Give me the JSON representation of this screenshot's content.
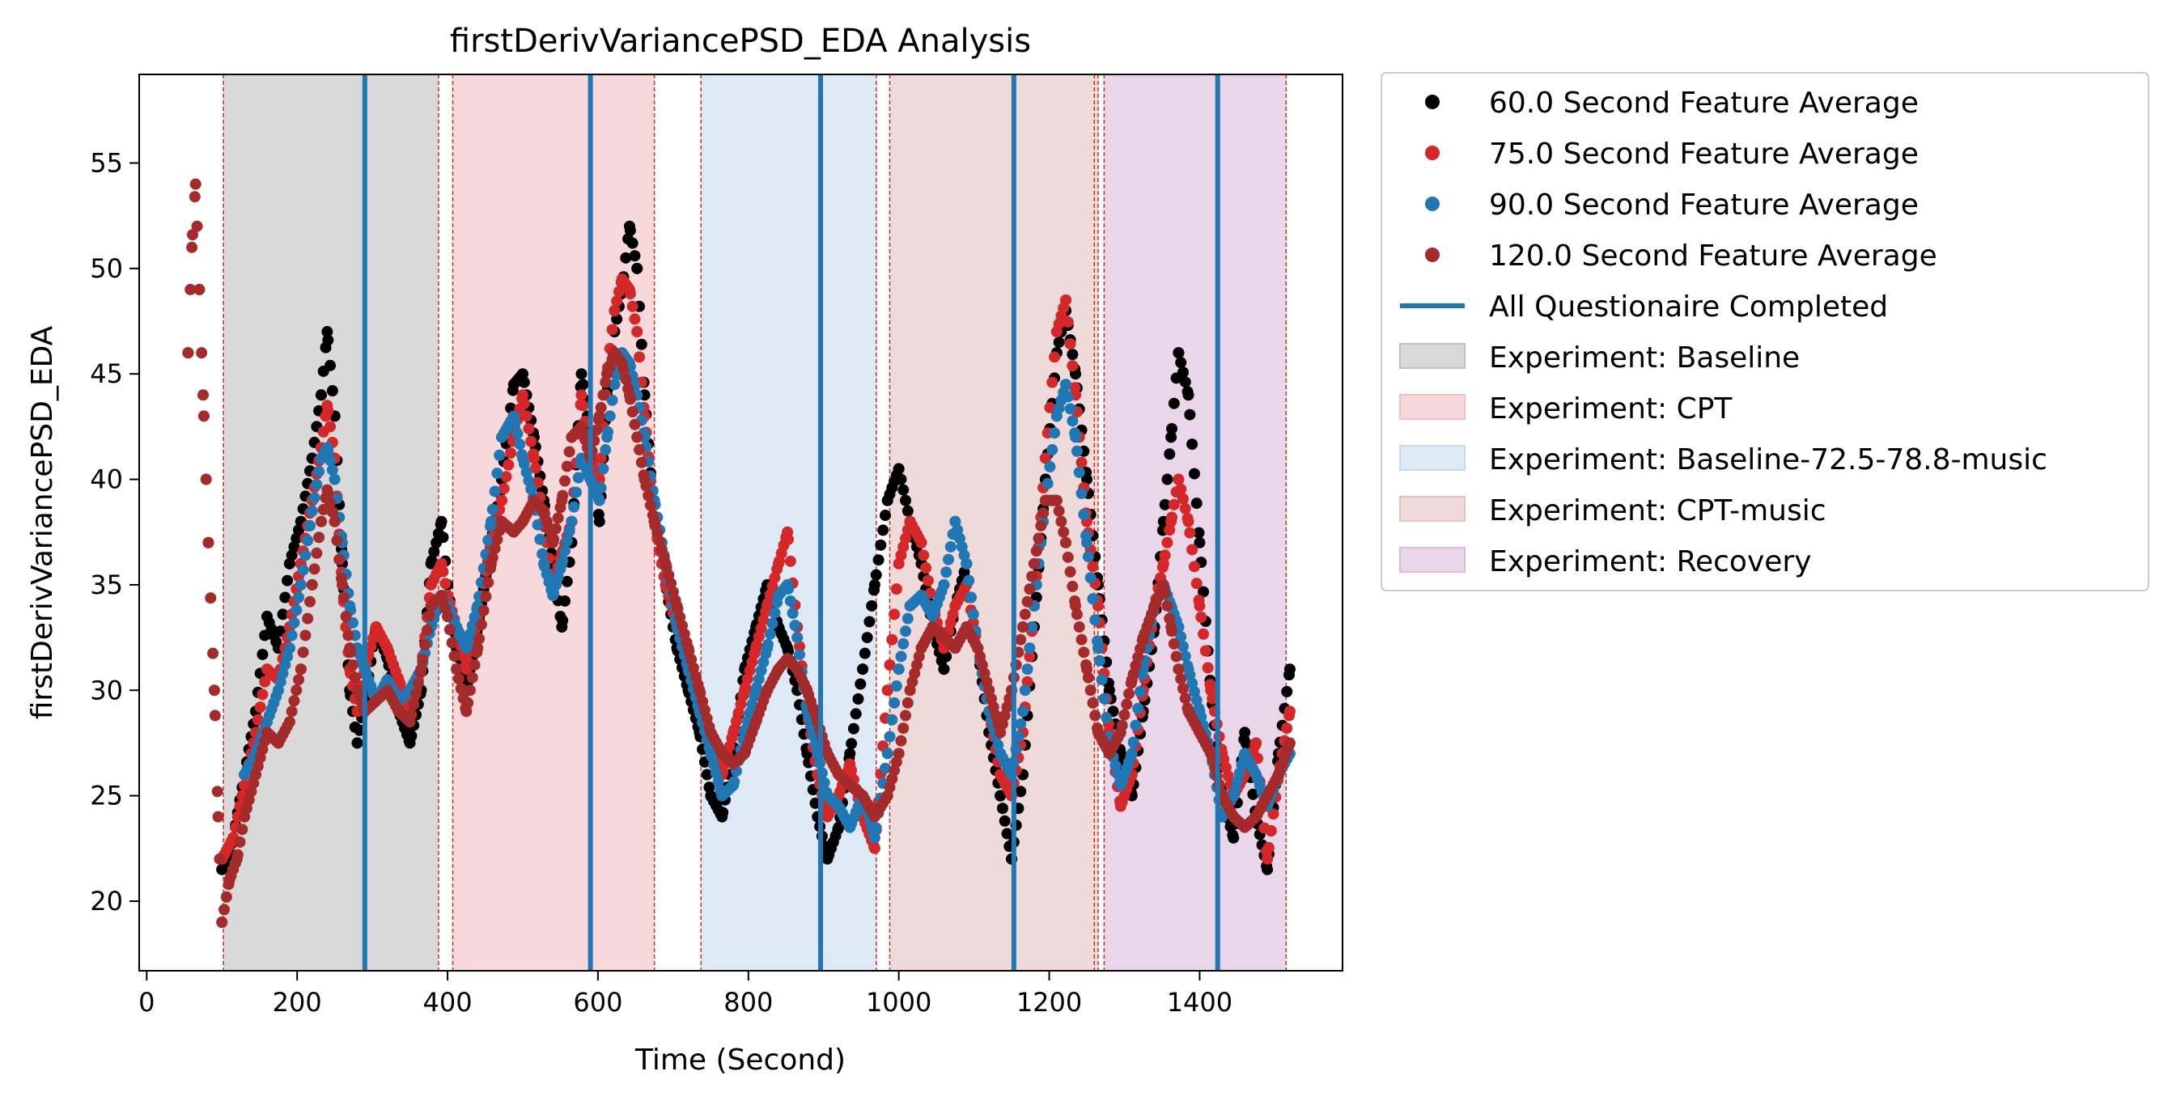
{
  "chart_data": {
    "type": "scatter",
    "title": "firstDerivVariancePSD_EDA Analysis",
    "xlabel": "Time (Second)",
    "ylabel": "firstDerivVariancePSD_EDA",
    "xlim": [
      -10,
      1590
    ],
    "ylim": [
      16.7,
      59.2
    ],
    "xticks": [
      0,
      200,
      400,
      600,
      800,
      1000,
      1200,
      1400
    ],
    "yticks": [
      20,
      25,
      30,
      35,
      40,
      45,
      50,
      55
    ],
    "grid": false,
    "legend_position": "outside-right",
    "experiments": [
      {
        "label": "Experiment: Baseline",
        "start": 102,
        "end": 388,
        "color": "#bfbfbf"
      },
      {
        "label": "Experiment: CPT",
        "start": 407,
        "end": 675,
        "color": "#f4c0c3"
      },
      {
        "label": "Experiment: Baseline-72.5-78.8-music",
        "start": 737,
        "end": 970,
        "color": "#c6daec"
      },
      {
        "label": "Experiment: CPT-music",
        "start": 988,
        "end": 1265,
        "color": "#e4c2c2"
      },
      {
        "label": "Experiment: Recovery",
        "start": 1273,
        "end": 1515,
        "color": "#dbbada"
      }
    ],
    "boundary_lines": [
      102,
      388,
      407,
      675,
      737,
      970,
      988,
      1260,
      1265,
      1273,
      1515
    ],
    "questionnaire_completed": {
      "label": "All Questionaire Completed",
      "x": [
        290,
        590,
        896,
        1153,
        1424
      ],
      "color": "#1f77b4"
    },
    "series": [
      {
        "name": "60.0 Second Feature Average",
        "color": "#000000",
        "start": 100,
        "x": [
          100,
          115,
          130,
          145,
          160,
          175,
          190,
          205,
          220,
          232,
          240,
          250,
          260,
          270,
          280,
          290,
          305,
          320,
          335,
          350,
          365,
          378,
          392,
          400,
          412,
          425,
          440,
          458,
          472,
          488,
          500,
          515,
          528,
          540,
          552,
          565,
          578,
          590,
          602,
          612,
          622,
          632,
          642,
          652,
          662,
          675,
          690,
          705,
          720,
          735,
          750,
          765,
          780,
          795,
          810,
          825,
          840,
          852,
          865,
          878,
          892,
          905,
          920,
          935,
          952,
          968,
          985,
          1000,
          1015,
          1030,
          1045,
          1060,
          1075,
          1090,
          1105,
          1120,
          1135,
          1150,
          1165,
          1180,
          1195,
          1210,
          1222,
          1235,
          1250,
          1265,
          1280,
          1295,
          1310,
          1325,
          1340,
          1352,
          1362,
          1372,
          1385,
          1400,
          1415,
          1430,
          1445,
          1460,
          1475,
          1490,
          1505,
          1520
        ],
        "y": [
          21.5,
          23,
          26,
          29,
          33.5,
          32,
          36,
          38,
          41,
          44,
          47,
          43,
          36,
          30,
          27.5,
          29.5,
          33,
          31.5,
          29,
          27.5,
          30,
          36,
          38,
          35,
          32,
          30,
          33,
          37,
          40,
          44.5,
          45,
          42,
          39,
          36,
          33,
          37,
          45,
          42,
          38,
          44,
          47,
          49,
          52,
          50,
          44,
          38,
          35,
          32,
          30,
          28,
          25,
          24,
          27,
          31,
          33,
          35,
          33,
          32,
          30,
          27,
          24,
          22,
          23.5,
          27,
          31,
          35,
          39,
          40.5,
          38,
          36,
          33,
          31,
          34,
          36,
          32,
          28,
          25,
          22,
          26,
          33,
          40,
          46,
          48,
          45,
          40,
          35,
          30,
          27,
          25,
          29,
          33,
          38,
          42,
          46,
          44,
          37,
          30,
          25,
          23,
          28,
          24,
          21.5,
          27,
          31
        ]
      },
      {
        "name": "75.0 Second Feature Average",
        "color": "#d62728",
        "start": 100,
        "x": [
          100,
          115,
          130,
          145,
          160,
          175,
          190,
          205,
          220,
          232,
          240,
          250,
          260,
          270,
          280,
          290,
          305,
          320,
          335,
          350,
          365,
          378,
          392,
          400,
          412,
          425,
          440,
          458,
          472,
          488,
          500,
          515,
          528,
          540,
          552,
          565,
          578,
          590,
          602,
          612,
          622,
          632,
          642,
          652,
          662,
          675,
          690,
          705,
          720,
          735,
          750,
          765,
          780,
          795,
          810,
          825,
          840,
          852,
          865,
          878,
          892,
          905,
          920,
          935,
          952,
          968,
          985,
          1000,
          1015,
          1030,
          1045,
          1060,
          1075,
          1090,
          1105,
          1120,
          1135,
          1150,
          1165,
          1180,
          1195,
          1210,
          1222,
          1235,
          1250,
          1265,
          1280,
          1295,
          1310,
          1325,
          1340,
          1352,
          1362,
          1372,
          1385,
          1400,
          1415,
          1430,
          1445,
          1460,
          1475,
          1490,
          1505,
          1520
        ],
        "y": [
          22,
          23,
          25.5,
          28,
          31,
          30.5,
          33,
          36,
          39,
          41.5,
          43.5,
          41,
          35,
          31,
          29,
          31,
          33,
          32,
          30.5,
          29,
          31,
          35,
          36,
          34.5,
          33,
          31,
          33.5,
          37,
          39,
          42,
          44,
          41,
          38,
          35,
          36.5,
          38,
          44,
          41,
          40,
          45,
          48,
          49.5,
          49,
          47,
          43,
          38,
          35,
          33,
          31,
          29,
          27,
          26,
          28,
          30,
          32,
          34,
          36,
          37.5,
          33,
          29,
          26,
          24,
          25,
          26.5,
          24,
          22.5,
          30,
          36,
          38,
          37,
          34,
          32,
          34,
          35,
          32,
          29,
          26,
          25,
          28,
          34,
          41,
          47,
          48.5,
          44,
          38,
          34,
          28,
          24.5,
          26,
          30,
          34,
          36,
          38,
          40,
          38,
          34,
          30,
          27,
          25,
          26,
          27.5,
          22,
          26,
          29
        ]
      },
      {
        "name": "90.0 Second Feature Average",
        "color": "#1f77b4",
        "start": 130,
        "x": [
          130,
          145,
          160,
          175,
          190,
          205,
          220,
          232,
          240,
          250,
          260,
          270,
          280,
          290,
          305,
          320,
          335,
          350,
          365,
          378,
          392,
          400,
          412,
          425,
          440,
          458,
          472,
          488,
          500,
          515,
          528,
          540,
          552,
          565,
          578,
          590,
          602,
          612,
          622,
          632,
          642,
          652,
          662,
          675,
          690,
          705,
          720,
          735,
          750,
          765,
          780,
          795,
          810,
          825,
          840,
          852,
          865,
          878,
          892,
          905,
          920,
          935,
          952,
          968,
          985,
          1000,
          1015,
          1030,
          1045,
          1060,
          1075,
          1090,
          1105,
          1120,
          1135,
          1150,
          1165,
          1180,
          1195,
          1210,
          1222,
          1235,
          1250,
          1265,
          1280,
          1295,
          1310,
          1325,
          1340,
          1352,
          1362,
          1372,
          1385,
          1400,
          1415,
          1430,
          1445,
          1460,
          1475,
          1490,
          1505,
          1520
        ],
        "y": [
          26,
          27,
          28.5,
          30,
          32,
          35,
          38.5,
          41,
          41.5,
          40,
          37,
          34,
          32,
          31,
          29.5,
          30.5,
          29.5,
          30,
          31,
          33,
          34.5,
          34,
          33,
          32,
          34,
          38,
          42,
          43,
          41,
          39,
          36,
          34.5,
          36,
          38,
          41,
          40,
          39,
          42,
          44.5,
          46,
          45.5,
          44,
          42,
          39,
          36,
          33,
          31,
          29,
          27,
          25,
          25.5,
          28,
          30,
          32,
          34.5,
          35,
          32.5,
          29,
          27,
          25,
          24.5,
          23.5,
          25,
          23,
          27,
          31,
          34,
          34.5,
          33.5,
          35,
          38,
          36,
          32,
          29,
          27,
          26,
          29,
          34,
          39,
          43,
          44.5,
          42,
          37,
          32,
          27.5,
          25.5,
          27,
          31,
          34,
          35,
          34,
          33,
          31,
          29,
          27,
          24,
          25,
          27,
          26,
          24.5,
          26,
          27
        ]
      },
      {
        "name": "120.0 Second Feature Average",
        "color": "#a52a2a",
        "start": 55,
        "x": [
          55,
          60,
          65,
          70,
          75,
          82,
          90,
          95,
          100,
          110,
          120,
          130,
          145,
          160,
          175,
          190,
          205,
          220,
          232,
          240,
          250,
          260,
          270,
          280,
          290,
          305,
          320,
          335,
          350,
          365,
          378,
          392,
          400,
          412,
          425,
          440,
          458,
          472,
          488,
          500,
          515,
          528,
          540,
          552,
          565,
          578,
          590,
          602,
          612,
          622,
          632,
          642,
          652,
          662,
          675,
          690,
          705,
          720,
          735,
          750,
          765,
          780,
          795,
          810,
          825,
          840,
          852,
          865,
          878,
          892,
          905,
          920,
          935,
          952,
          968,
          985,
          1000,
          1015,
          1030,
          1045,
          1060,
          1075,
          1090,
          1105,
          1120,
          1135,
          1150,
          1165,
          1180,
          1195,
          1210,
          1222,
          1235,
          1250,
          1265,
          1280,
          1295,
          1310,
          1325,
          1340,
          1352,
          1362,
          1372,
          1385,
          1400,
          1415,
          1430,
          1445,
          1460,
          1475,
          1490,
          1505,
          1520
        ],
        "y": [
          46,
          51,
          54,
          49,
          44,
          37,
          30,
          24,
          19,
          21,
          22,
          24,
          26,
          28,
          27.5,
          28.5,
          31,
          35,
          38,
          39.5,
          38,
          35,
          32,
          30,
          29,
          29.5,
          30,
          29,
          28.5,
          31,
          34,
          34.5,
          33.5,
          31,
          29,
          32,
          36,
          38,
          37.5,
          38,
          39,
          38.5,
          37,
          39,
          42,
          42.5,
          41,
          43,
          45,
          46,
          45.5,
          44,
          42,
          40,
          38,
          36,
          34,
          32,
          30,
          28,
          27,
          26.5,
          27,
          28.5,
          30,
          31,
          31.5,
          31,
          30,
          28.5,
          27,
          26,
          25.5,
          25,
          24,
          25,
          27,
          30,
          32,
          33,
          32.5,
          32,
          33,
          32,
          30,
          28,
          30,
          33,
          36,
          39,
          39,
          37,
          34,
          31,
          28,
          27,
          28,
          30.5,
          32.5,
          34,
          35,
          33,
          31,
          29,
          28,
          27,
          25,
          24,
          23.5,
          24,
          25,
          26,
          27.5
        ]
      }
    ]
  }
}
